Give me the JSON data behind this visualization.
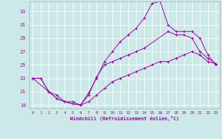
{
  "xlabel": "Windchill (Refroidissement éolien,°C)",
  "ylabel": "",
  "xlim": [
    -0.5,
    23.5
  ],
  "ylim": [
    18.5,
    34.5
  ],
  "xticks": [
    0,
    1,
    2,
    3,
    4,
    5,
    6,
    7,
    8,
    9,
    10,
    11,
    12,
    13,
    14,
    15,
    16,
    17,
    18,
    19,
    20,
    21,
    22,
    23
  ],
  "yticks": [
    19,
    21,
    23,
    25,
    27,
    29,
    31,
    33
  ],
  "bg_color": "#cce8e8",
  "line_color": "#990099",
  "line1_x": [
    0,
    1,
    2,
    3,
    4,
    5,
    6,
    7,
    8,
    9,
    10,
    11,
    12,
    13,
    14,
    15,
    16,
    17,
    18,
    19,
    20,
    21,
    22,
    23
  ],
  "line1_y": [
    23,
    23,
    21,
    20,
    19.5,
    19.2,
    19.0,
    20.8,
    23.0,
    25.5,
    27.0,
    28.5,
    29.5,
    30.5,
    32.0,
    34.2,
    34.5,
    31.0,
    30.0,
    30.0,
    30.0,
    29.0,
    26.5,
    25.0
  ],
  "line2_x": [
    0,
    2,
    3,
    4,
    5,
    6,
    7,
    8,
    9,
    10,
    11,
    12,
    13,
    14,
    17,
    18,
    19,
    20,
    21,
    22,
    23
  ],
  "line2_y": [
    23,
    21,
    20,
    19.5,
    19.2,
    19.0,
    20.5,
    23.2,
    25.0,
    25.5,
    26.0,
    26.5,
    27.0,
    27.5,
    30.0,
    29.5,
    29.5,
    29.0,
    27.0,
    26.0,
    25.2
  ],
  "line3_x": [
    0,
    1,
    2,
    3,
    4,
    5,
    6,
    7,
    8,
    9,
    10,
    11,
    12,
    13,
    14,
    15,
    16,
    17,
    18,
    19,
    20,
    21,
    22,
    23
  ],
  "line3_y": [
    23,
    23,
    21,
    20.5,
    19.5,
    19.5,
    19.0,
    19.5,
    20.5,
    21.5,
    22.5,
    23.0,
    23.5,
    24.0,
    24.5,
    25.0,
    25.5,
    25.5,
    26.0,
    26.5,
    27.0,
    26.5,
    25.5,
    25.2
  ]
}
